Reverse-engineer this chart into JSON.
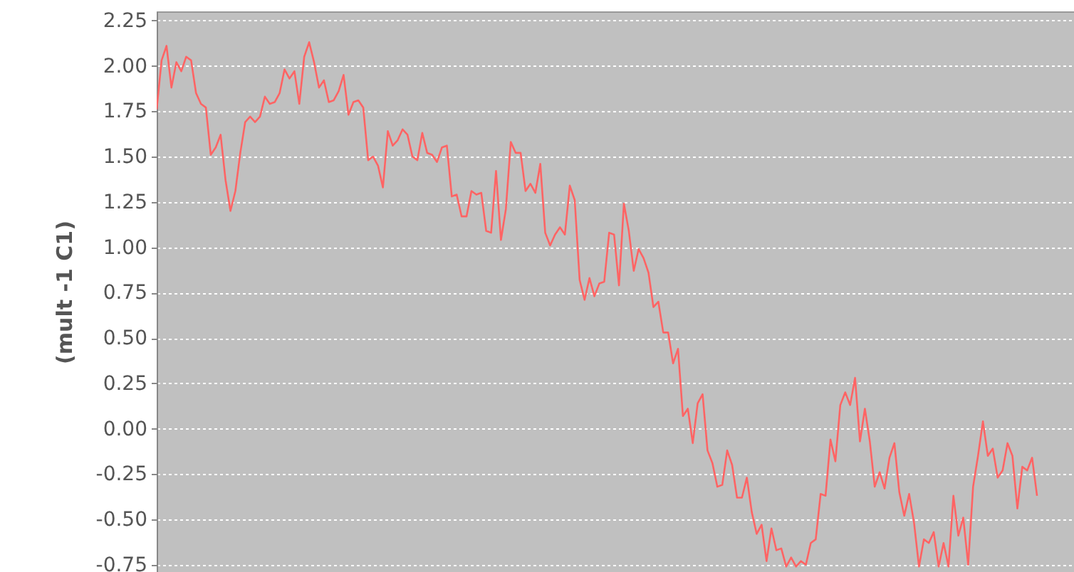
{
  "chart_data": {
    "type": "line",
    "ylabel": "(mult -1 C1)",
    "grid": "y",
    "marker": "none",
    "line_style": "solid",
    "tick_labels": "y",
    "categories": [
      null,
      null,
      null,
      null,
      null,
      null,
      null,
      null,
      null,
      null,
      null,
      null,
      null,
      null,
      null,
      null,
      null,
      null,
      null,
      null,
      null,
      null,
      null,
      null,
      null,
      null,
      null,
      null,
      null,
      null,
      null,
      null,
      null,
      null,
      null,
      null,
      null,
      null,
      null,
      null,
      null,
      null,
      null,
      null,
      null,
      null,
      null,
      null,
      null,
      null,
      null,
      null,
      null,
      null,
      null,
      null,
      null,
      null,
      null,
      null,
      null,
      null,
      null,
      null,
      null,
      null,
      null,
      null,
      null,
      null,
      null,
      null,
      null,
      null,
      null,
      null,
      null,
      null,
      null,
      null,
      null,
      null,
      null,
      null,
      null,
      null,
      null,
      null,
      null,
      null,
      null,
      null,
      null,
      null,
      null,
      null,
      null,
      null,
      null,
      null,
      null,
      null,
      null,
      null,
      null,
      null,
      null,
      null,
      null,
      null,
      null,
      null,
      null,
      null,
      null,
      null,
      null,
      null,
      null,
      null,
      null,
      null,
      null,
      null,
      null,
      null,
      null,
      null,
      null,
      null,
      null,
      null,
      null,
      null,
      null,
      null,
      null,
      null,
      null,
      null,
      null,
      null,
      null,
      null,
      null,
      null,
      null,
      null,
      null,
      null,
      null,
      null,
      null,
      null,
      null,
      null,
      null,
      null,
      null,
      null,
      null,
      null,
      null,
      null,
      null,
      null,
      null,
      null,
      null,
      null,
      null,
      null,
      null,
      null,
      null,
      null,
      null,
      null,
      null,
      null
    ],
    "series": [
      {
        "color": "#ff6464",
        "values": [
          1.76,
          2.03,
          2.11,
          1.88,
          2.02,
          1.97,
          2.05,
          2.03,
          1.85,
          1.79,
          1.77,
          1.51,
          1.55,
          1.62,
          1.37,
          1.2,
          1.31,
          1.52,
          1.69,
          1.72,
          1.69,
          1.72,
          1.83,
          1.79,
          1.8,
          1.85,
          1.98,
          1.93,
          1.97,
          1.79,
          2.05,
          2.13,
          2.02,
          1.88,
          1.92,
          1.8,
          1.81,
          1.86,
          1.95,
          1.73,
          1.8,
          1.81,
          1.77,
          1.48,
          1.5,
          1.45,
          1.33,
          1.64,
          1.56,
          1.59,
          1.65,
          1.62,
          1.5,
          1.48,
          1.63,
          1.52,
          1.51,
          1.47,
          1.55,
          1.56,
          1.28,
          1.29,
          1.17,
          1.17,
          1.31,
          1.29,
          1.3,
          1.09,
          1.08,
          1.42,
          1.04,
          1.21,
          1.58,
          1.52,
          1.52,
          1.31,
          1.35,
          1.3,
          1.46,
          1.08,
          1.01,
          1.07,
          1.11,
          1.07,
          1.34,
          1.26,
          0.82,
          0.71,
          0.83,
          0.73,
          0.8,
          0.81,
          1.08,
          1.07,
          0.79,
          1.24,
          1.09,
          0.87,
          0.99,
          0.94,
          0.86,
          0.67,
          0.7,
          0.53,
          0.53,
          0.36,
          0.44,
          0.07,
          0.11,
          -0.08,
          0.14,
          0.19,
          -0.12,
          -0.19,
          -0.32,
          -0.31,
          -0.12,
          -0.2,
          -0.38,
          -0.38,
          -0.27,
          -0.46,
          -0.58,
          -0.53,
          -0.73,
          -0.55,
          -0.67,
          -0.66,
          -0.76,
          -0.71,
          -0.76,
          -0.73,
          -0.75,
          -0.63,
          -0.61,
          -0.36,
          -0.37,
          -0.06,
          -0.18,
          0.13,
          0.2,
          0.13,
          0.28,
          -0.07,
          0.11,
          -0.07,
          -0.32,
          -0.24,
          -0.33,
          -0.16,
          -0.08,
          -0.35,
          -0.48,
          -0.36,
          -0.52,
          -0.76,
          -0.61,
          -0.63,
          -0.57,
          -0.76,
          -0.63,
          -0.76,
          -0.37,
          -0.59,
          -0.49,
          -0.75,
          -0.32,
          -0.15,
          0.04,
          -0.15,
          -0.11,
          -0.27,
          -0.23,
          -0.08,
          -0.15,
          -0.44,
          -0.21,
          -0.23,
          -0.16,
          -0.37
        ]
      }
    ],
    "ylim": [
      -0.79,
      2.3
    ],
    "yticks": [
      {
        "value": -0.75,
        "label": "-0.75"
      },
      {
        "value": -0.5,
        "label": "-0.50"
      },
      {
        "value": -0.25,
        "label": "-0.25"
      },
      {
        "value": 0,
        "label": "0.00"
      },
      {
        "value": 0.25,
        "label": "0.25"
      },
      {
        "value": 0.5,
        "label": "0.50"
      },
      {
        "value": 0.75,
        "label": "0.75"
      },
      {
        "value": 1,
        "label": "1.00"
      },
      {
        "value": 1.25,
        "label": "1.25"
      },
      {
        "value": 1.5,
        "label": "1.50"
      },
      {
        "value": 1.75,
        "label": "1.75"
      },
      {
        "value": 2,
        "label": "2.00"
      },
      {
        "value": 2.25,
        "label": "2.25"
      }
    ]
  }
}
